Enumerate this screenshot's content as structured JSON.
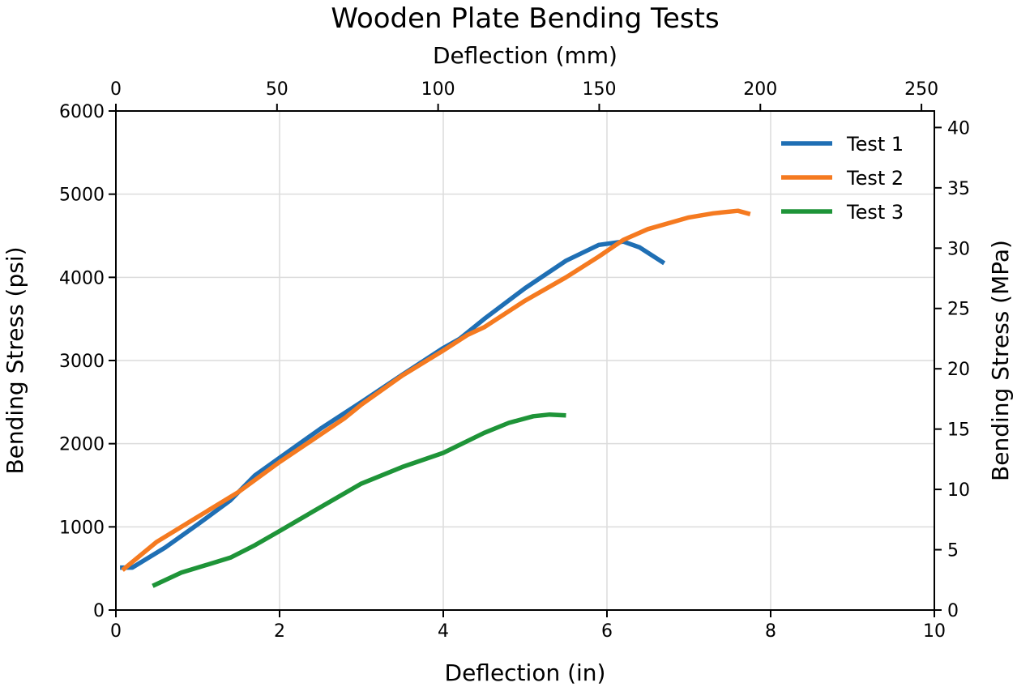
{
  "chart_data": {
    "type": "line",
    "title": "Wooden Plate Bending Tests",
    "xlabel": "Deflection (in)",
    "ylabel": "Bending Stress (psi)",
    "x2label": "Deflection (mm)",
    "y2label": "Bending Stress (MPa)",
    "xlim": [
      0,
      10
    ],
    "ylim": [
      0,
      6000
    ],
    "x2lim": [
      0,
      254
    ],
    "y2lim": [
      0,
      41.37
    ],
    "xticks": [
      "0",
      "2",
      "4",
      "6",
      "8",
      "10"
    ],
    "yticks": [
      "0",
      "1000",
      "2000",
      "3000",
      "4000",
      "5000",
      "6000"
    ],
    "x2ticks": [
      "0",
      "50",
      "100",
      "150",
      "200",
      "250"
    ],
    "y2ticks": [
      "0",
      "5",
      "10",
      "15",
      "20",
      "25",
      "30",
      "35",
      "40"
    ],
    "grid": true,
    "legend_position": "top-right",
    "series": [
      {
        "name": "Test 1",
        "color": "#1f6fb4",
        "x": [
          0.05,
          0.2,
          0.6,
          1.0,
          1.4,
          1.7,
          2.0,
          2.5,
          3.0,
          3.5,
          4.0,
          4.2,
          4.5,
          5.0,
          5.5,
          5.9,
          6.2,
          6.4,
          6.7
        ],
        "y": [
          510,
          510,
          750,
          1030,
          1320,
          1620,
          1830,
          2180,
          2500,
          2830,
          3150,
          3260,
          3500,
          3870,
          4200,
          4390,
          4430,
          4360,
          4170
        ]
      },
      {
        "name": "Test 2",
        "color": "#f57a20",
        "x": [
          0.08,
          0.5,
          1.0,
          1.5,
          2.0,
          2.5,
          2.8,
          3.0,
          3.5,
          4.0,
          4.3,
          4.5,
          5.0,
          5.5,
          5.9,
          6.2,
          6.5,
          7.0,
          7.3,
          7.6,
          7.75
        ],
        "y": [
          480,
          820,
          1120,
          1420,
          1780,
          2110,
          2310,
          2470,
          2820,
          3120,
          3310,
          3400,
          3720,
          4000,
          4250,
          4450,
          4580,
          4720,
          4770,
          4800,
          4760
        ]
      },
      {
        "name": "Test 3",
        "color": "#1e9438",
        "x": [
          0.45,
          0.8,
          1.4,
          1.7,
          2.0,
          2.4,
          3.0,
          3.5,
          4.0,
          4.5,
          4.8,
          5.1,
          5.3,
          5.5
        ],
        "y": [
          290,
          450,
          630,
          780,
          950,
          1180,
          1520,
          1720,
          1890,
          2130,
          2250,
          2330,
          2350,
          2340
        ]
      }
    ]
  }
}
